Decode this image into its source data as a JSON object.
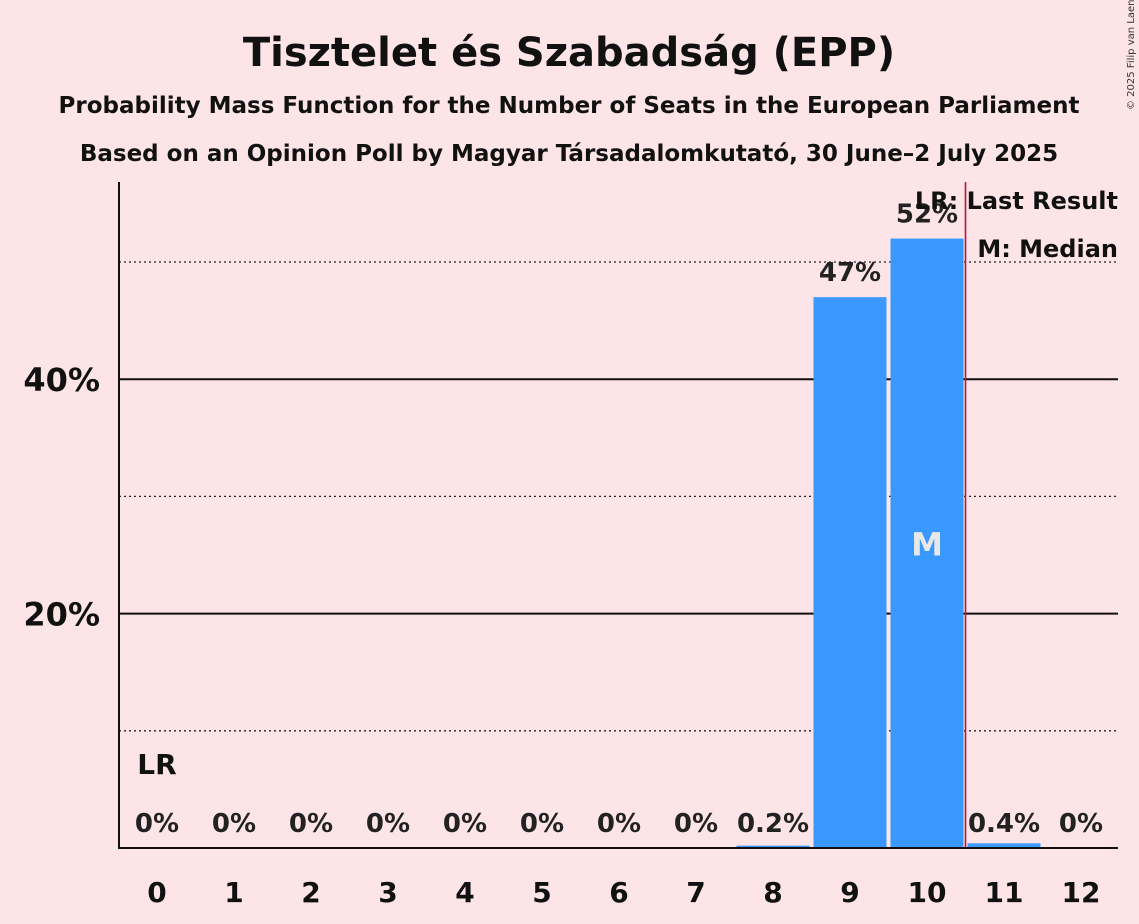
{
  "chart_data": {
    "type": "bar",
    "title": "Tisztelet és Szabadság (EPP)",
    "subtitle_1": "Probability Mass Function for the Number of Seats in the European Parliament",
    "subtitle_2": "Based on an Opinion Poll by Magyar Társadalomkutató, 30 June–2 July 2025",
    "categories": [
      "0",
      "1",
      "2",
      "3",
      "4",
      "5",
      "6",
      "7",
      "8",
      "9",
      "10",
      "11",
      "12"
    ],
    "values": [
      0,
      0,
      0,
      0,
      0,
      0,
      0,
      0,
      0.2,
      47,
      52,
      0.4,
      0
    ],
    "value_labels": [
      "0%",
      "0%",
      "0%",
      "0%",
      "0%",
      "0%",
      "0%",
      "0%",
      "0.2%",
      "47%",
      "52%",
      "0.4%",
      "0%"
    ],
    "yticks": [
      {
        "value": 20,
        "label": "20%"
      },
      {
        "value": 40,
        "label": "40%"
      }
    ],
    "dotted_gridlines": [
      10,
      30,
      50
    ],
    "ylim": [
      0,
      56
    ],
    "bar_color": "#3a99ff",
    "last_result_line_color": "#c0103a",
    "last_result_line_after_category": "10",
    "median_category": "10",
    "median_marker": "M",
    "last_result_category": "0",
    "last_result_marker": "LR",
    "legend": [
      "LR: Last Result",
      "M: Median"
    ],
    "legend_placement": "top-right",
    "copyright": "© 2025 Filip van Laenen"
  }
}
